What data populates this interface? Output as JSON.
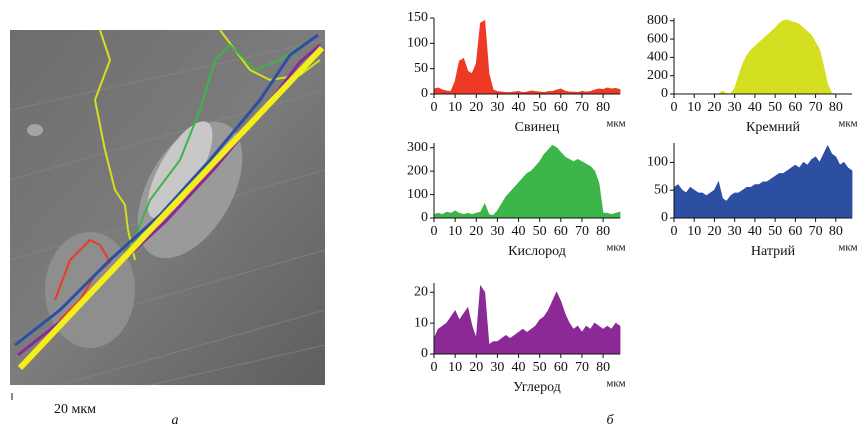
{
  "figure": {
    "scale_bar": "20 мкм",
    "panel_a": "а",
    "panel_b": "б"
  },
  "chart_data": [
    {
      "type": "area",
      "title": "Свинец",
      "xlabel": "мкм",
      "color": "#ee3a24",
      "x": [
        0,
        2,
        4,
        6,
        8,
        10,
        12,
        14,
        16,
        18,
        20,
        22,
        24,
        26,
        28,
        30,
        32,
        34,
        36,
        38,
        40,
        42,
        44,
        46,
        48,
        50,
        52,
        54,
        56,
        58,
        60,
        62,
        64,
        66,
        68,
        70,
        72,
        74,
        76,
        78,
        80,
        82,
        84,
        86,
        88
      ],
      "values": [
        10,
        12,
        8,
        6,
        5,
        25,
        65,
        70,
        45,
        40,
        60,
        140,
        145,
        40,
        8,
        5,
        4,
        3,
        3,
        4,
        5,
        3,
        4,
        6,
        5,
        4,
        3,
        5,
        5,
        8,
        10,
        6,
        4,
        4,
        3,
        5,
        4,
        5,
        8,
        10,
        9,
        12,
        10,
        11,
        9
      ],
      "xlim": [
        0,
        88
      ],
      "xticks": [
        0,
        10,
        20,
        30,
        40,
        50,
        60,
        70,
        80
      ],
      "ylim": [
        0,
        150
      ],
      "yticks": [
        0,
        50,
        100,
        150
      ]
    },
    {
      "type": "area",
      "title": "Кремний",
      "xlabel": "мкм",
      "color": "#d4df1f",
      "x": [
        0,
        2,
        4,
        6,
        8,
        10,
        12,
        14,
        16,
        18,
        20,
        22,
        24,
        26,
        28,
        30,
        32,
        34,
        36,
        38,
        40,
        42,
        44,
        46,
        48,
        50,
        52,
        54,
        56,
        58,
        60,
        62,
        64,
        66,
        68,
        70,
        72,
        74,
        76,
        78,
        80,
        82,
        84,
        86,
        88
      ],
      "values": [
        0,
        0,
        0,
        0,
        0,
        0,
        0,
        0,
        0,
        0,
        0,
        0,
        30,
        5,
        0,
        60,
        200,
        330,
        420,
        480,
        520,
        560,
        600,
        640,
        680,
        720,
        770,
        800,
        810,
        790,
        780,
        760,
        720,
        680,
        640,
        560,
        480,
        300,
        100,
        10,
        0,
        0,
        0,
        0,
        0
      ],
      "xlim": [
        0,
        88
      ],
      "xticks": [
        0,
        10,
        20,
        30,
        40,
        50,
        60,
        70,
        80
      ],
      "ylim": [
        0,
        830
      ],
      "yticks": [
        0,
        200,
        400,
        600,
        800
      ]
    },
    {
      "type": "area",
      "title": "Кислород",
      "xlabel": "мкм",
      "color": "#3cb54a",
      "x": [
        0,
        2,
        4,
        6,
        8,
        10,
        12,
        14,
        16,
        18,
        20,
        22,
        24,
        26,
        28,
        30,
        32,
        34,
        36,
        38,
        40,
        42,
        44,
        46,
        48,
        50,
        52,
        54,
        56,
        58,
        60,
        62,
        64,
        66,
        68,
        70,
        72,
        74,
        76,
        78,
        80,
        82,
        84,
        86,
        88
      ],
      "values": [
        15,
        20,
        15,
        25,
        20,
        30,
        20,
        15,
        20,
        15,
        20,
        25,
        60,
        15,
        10,
        30,
        60,
        90,
        110,
        130,
        150,
        170,
        190,
        200,
        220,
        240,
        270,
        290,
        310,
        300,
        280,
        260,
        250,
        240,
        250,
        240,
        230,
        220,
        200,
        150,
        20,
        20,
        15,
        20,
        25
      ],
      "xlim": [
        0,
        88
      ],
      "xticks": [
        0,
        10,
        20,
        30,
        40,
        50,
        60,
        70,
        80
      ],
      "ylim": [
        0,
        320
      ],
      "yticks": [
        0,
        100,
        200,
        300
      ]
    },
    {
      "type": "area",
      "title": "Натрий",
      "xlabel": "мкм",
      "color": "#2d4fa2",
      "x": [
        0,
        2,
        4,
        6,
        8,
        10,
        12,
        14,
        16,
        18,
        20,
        22,
        24,
        26,
        28,
        30,
        32,
        34,
        36,
        38,
        40,
        42,
        44,
        46,
        48,
        50,
        52,
        54,
        56,
        58,
        60,
        62,
        64,
        66,
        68,
        70,
        72,
        74,
        76,
        78,
        80,
        82,
        84,
        86,
        88
      ],
      "values": [
        55,
        60,
        50,
        45,
        55,
        50,
        45,
        45,
        40,
        45,
        50,
        65,
        35,
        30,
        40,
        45,
        45,
        50,
        55,
        55,
        60,
        60,
        65,
        65,
        70,
        75,
        80,
        80,
        85,
        90,
        95,
        90,
        100,
        95,
        105,
        110,
        100,
        115,
        130,
        115,
        110,
        95,
        100,
        90,
        85
      ],
      "xlim": [
        0,
        88
      ],
      "xticks": [
        0,
        10,
        20,
        30,
        40,
        50,
        60,
        70,
        80
      ],
      "ylim": [
        0,
        135
      ],
      "yticks": [
        0,
        50,
        100
      ]
    },
    {
      "type": "area",
      "title": "Углерод",
      "xlabel": "мкм",
      "color": "#8b2a97",
      "x": [
        0,
        2,
        4,
        6,
        8,
        10,
        12,
        14,
        16,
        18,
        20,
        22,
        24,
        26,
        28,
        30,
        32,
        34,
        36,
        38,
        40,
        42,
        44,
        46,
        48,
        50,
        52,
        54,
        56,
        58,
        60,
        62,
        64,
        66,
        68,
        70,
        72,
        74,
        76,
        78,
        80,
        82,
        84,
        86,
        88
      ],
      "values": [
        5,
        8,
        9,
        10,
        12,
        14,
        11,
        13,
        15,
        9,
        5,
        22,
        20,
        3,
        4,
        4,
        5,
        6,
        5,
        6,
        7,
        8,
        7,
        8,
        9,
        11,
        12,
        14,
        17,
        20,
        17,
        13,
        10,
        8,
        9,
        7,
        9,
        8,
        10,
        9,
        8,
        9,
        8,
        10,
        9
      ],
      "xlim": [
        0,
        88
      ],
      "xticks": [
        0,
        10,
        20,
        30,
        40,
        50,
        60,
        70,
        80
      ],
      "ylim": [
        0,
        23
      ],
      "yticks": [
        0,
        10,
        20
      ]
    }
  ]
}
